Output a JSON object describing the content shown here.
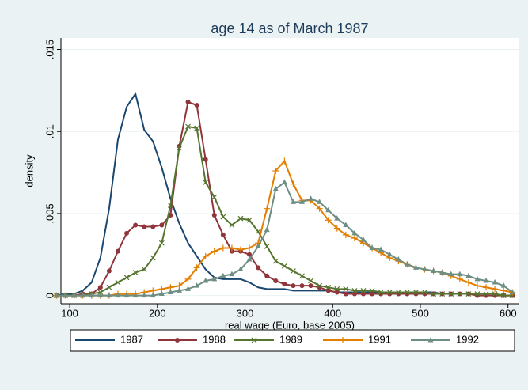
{
  "chart_data": {
    "type": "line",
    "title": "age 14 as of March 1987",
    "x_label": "real wage (Euro, base 2005)",
    "y_label": "density",
    "x": [
      85,
      95,
      105,
      115,
      125,
      135,
      145,
      155,
      165,
      175,
      185,
      195,
      205,
      215,
      225,
      235,
      245,
      255,
      265,
      275,
      285,
      295,
      305,
      315,
      325,
      335,
      345,
      355,
      365,
      375,
      385,
      395,
      405,
      415,
      425,
      435,
      445,
      455,
      465,
      475,
      485,
      495,
      505,
      515,
      525,
      535,
      545,
      555,
      565,
      575,
      585,
      595,
      605
    ],
    "series": [
      {
        "name": "1987",
        "color": "#1a476f",
        "marker": "none",
        "values": [
          0,
          0.0001,
          0.0001,
          0.0003,
          0.0008,
          0.0023,
          0.0053,
          0.0095,
          0.0115,
          0.0123,
          0.0101,
          0.0094,
          0.0078,
          0.0059,
          0.0044,
          0.0032,
          0.0024,
          0.0016,
          0.0011,
          0.001,
          0.001,
          0.001,
          0.0008,
          0.0005,
          0.0004,
          0.0004,
          0.0004,
          0.0003,
          0.0003,
          0.0003,
          0.0003,
          0.0003,
          0.0002,
          0.0002,
          0.0002,
          0.0002,
          0.0002,
          0.0002,
          0.0002,
          0.0002,
          0.0002,
          0.0002,
          0.0002,
          0.0002,
          0.0001,
          0.0001,
          0.0001,
          0.0001,
          0.0001,
          0.0001,
          0.0001,
          0,
          0
        ]
      },
      {
        "name": "1988",
        "color": "#90353b",
        "marker": "circle",
        "values": [
          0,
          0,
          0,
          0.0001,
          0.0001,
          0.0005,
          0.0015,
          0.0027,
          0.0038,
          0.0043,
          0.0042,
          0.0042,
          0.0043,
          0.0049,
          0.0091,
          0.0118,
          0.0116,
          0.0083,
          0.0049,
          0.0037,
          0.0027,
          0.0027,
          0.0025,
          0.0017,
          0.0012,
          0.0009,
          0.0007,
          0.0006,
          0.0006,
          0.0006,
          0.0005,
          0.0003,
          0.0002,
          0.0001,
          0.0001,
          0.0001,
          0.0001,
          0.0001,
          0.0001,
          0.0001,
          0.0001,
          0.0001,
          0.0001,
          0.0001,
          0.0001,
          0.0001,
          0.0001,
          0.0001,
          0,
          0,
          0,
          0,
          0
        ]
      },
      {
        "name": "1989",
        "color": "#55752f",
        "marker": "x",
        "values": [
          0,
          0,
          0,
          0,
          0.0001,
          0.0002,
          0.0005,
          0.0008,
          0.0011,
          0.0014,
          0.0016,
          0.0023,
          0.0032,
          0.0055,
          0.009,
          0.0103,
          0.0102,
          0.0069,
          0.006,
          0.0048,
          0.0043,
          0.0047,
          0.0046,
          0.0039,
          0.003,
          0.0021,
          0.0018,
          0.0015,
          0.0012,
          0.0009,
          0.0006,
          0.0005,
          0.0004,
          0.0004,
          0.0003,
          0.0003,
          0.0003,
          0.0002,
          0.0002,
          0.0002,
          0.0002,
          0.0002,
          0.0002,
          0.0001,
          0.0001,
          0.0001,
          0.0001,
          0.0001,
          0.0001,
          0.0001,
          0.0001,
          0,
          0
        ]
      },
      {
        "name": "1991",
        "color": "#e37e00",
        "marker": "plus",
        "values": [
          0,
          0,
          0,
          0,
          0,
          0,
          0,
          0.0001,
          0.0001,
          0.0001,
          0.0002,
          0.0003,
          0.0004,
          0.0005,
          0.0006,
          0.001,
          0.0017,
          0.0024,
          0.0027,
          0.0029,
          0.0029,
          0.0028,
          0.0029,
          0.0032,
          0.0053,
          0.0076,
          0.0082,
          0.0068,
          0.0058,
          0.0058,
          0.0053,
          0.0046,
          0.0041,
          0.0037,
          0.0035,
          0.0032,
          0.0029,
          0.0026,
          0.0023,
          0.0021,
          0.0019,
          0.0017,
          0.0016,
          0.0015,
          0.0014,
          0.0012,
          0.001,
          0.0008,
          0.0006,
          0.0005,
          0.0004,
          0.0003,
          0.0002
        ]
      },
      {
        "name": "1992",
        "color": "#6e8e84",
        "marker": "triangle",
        "values": [
          0,
          0,
          0,
          0,
          0,
          0,
          0,
          0,
          0,
          0,
          0,
          0,
          0.0001,
          0.0002,
          0.0003,
          0.0004,
          0.0006,
          0.0009,
          0.001,
          0.0012,
          0.0013,
          0.0016,
          0.0022,
          0.003,
          0.004,
          0.0065,
          0.0069,
          0.0057,
          0.0057,
          0.0059,
          0.0057,
          0.0052,
          0.0047,
          0.0043,
          0.0038,
          0.0034,
          0.0029,
          0.0028,
          0.0025,
          0.0022,
          0.0019,
          0.0017,
          0.0016,
          0.0015,
          0.0014,
          0.0013,
          0.0013,
          0.0012,
          0.001,
          0.0009,
          0.0008,
          0.0006,
          0.0002
        ]
      }
    ],
    "xlim": [
      90,
      612
    ],
    "xticks": [
      100,
      200,
      300,
      400,
      500,
      600
    ],
    "ylim": [
      -0.0005,
      0.0157
    ],
    "yticks": [
      0,
      {
        "value": 0.005,
        "label": ".005"
      },
      {
        "value": 0.01,
        "label": ".01"
      },
      {
        "value": 0.015,
        "label": ".015"
      }
    ],
    "grid": true,
    "legend": "bottom"
  }
}
